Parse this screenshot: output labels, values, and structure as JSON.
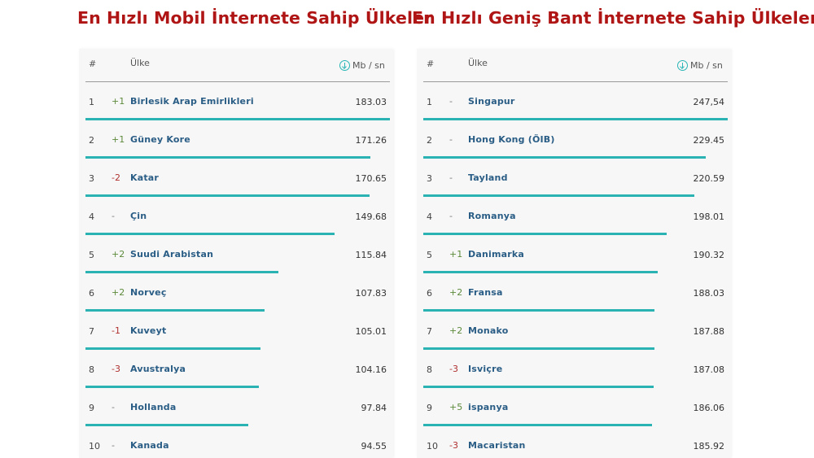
{
  "chart_data": [
    {
      "type": "bar",
      "title": "En Hızlı Mobil İnternete Sahip Ülkeler",
      "header": {
        "rank": "#",
        "country": "Ülke",
        "unit": "Mb / sn"
      },
      "unit_icon": "arrow-down-circle-icon",
      "bar_color": "#2bb3b3",
      "xlim": [
        0,
        183.03
      ],
      "rows": [
        {
          "rank": "1",
          "change": "+1",
          "country": "Birlesik Arap Emirlikleri",
          "value": 183.03,
          "value_label": "183.03"
        },
        {
          "rank": "2",
          "change": "+1",
          "country": "Güney Kore",
          "value": 171.26,
          "value_label": "171.26"
        },
        {
          "rank": "3",
          "change": "-2",
          "country": "Katar",
          "value": 170.65,
          "value_label": "170.65"
        },
        {
          "rank": "4",
          "change": "-",
          "country": "Çin",
          "value": 149.68,
          "value_label": "149.68"
        },
        {
          "rank": "5",
          "change": "+2",
          "country": "Suudi Arabistan",
          "value": 115.84,
          "value_label": "115.84"
        },
        {
          "rank": "6",
          "change": "+2",
          "country": "Norveç",
          "value": 107.83,
          "value_label": "107.83"
        },
        {
          "rank": "7",
          "change": "-1",
          "country": "Kuveyt",
          "value": 105.01,
          "value_label": "105.01"
        },
        {
          "rank": "8",
          "change": "-3",
          "country": "Avustralya",
          "value": 104.16,
          "value_label": "104.16"
        },
        {
          "rank": "9",
          "change": "-",
          "country": "Hollanda",
          "value": 97.84,
          "value_label": "97.84"
        },
        {
          "rank": "10",
          "change": "-",
          "country": "Kanada",
          "value": 94.55,
          "value_label": "94.55"
        }
      ]
    },
    {
      "type": "bar",
      "title": "En Hızlı Geniş Bant İnternete Sahip Ülkeler",
      "header": {
        "rank": "#",
        "country": "Ülke",
        "unit": "Mb / sn"
      },
      "unit_icon": "arrow-down-circle-icon",
      "bar_color": "#2bb3b3",
      "xlim": [
        0,
        247.54
      ],
      "rows": [
        {
          "rank": "1",
          "change": "-",
          "country": "Singapur",
          "value": 247.54,
          "value_label": "247,54"
        },
        {
          "rank": "2",
          "change": "-",
          "country": "Hong Kong (ÖIB)",
          "value": 229.45,
          "value_label": "229.45"
        },
        {
          "rank": "3",
          "change": "-",
          "country": "Tayland",
          "value": 220.59,
          "value_label": "220.59"
        },
        {
          "rank": "4",
          "change": "-",
          "country": "Romanya",
          "value": 198.01,
          "value_label": "198.01"
        },
        {
          "rank": "5",
          "change": "+1",
          "country": "Danimarka",
          "value": 190.32,
          "value_label": "190.32"
        },
        {
          "rank": "6",
          "change": "+2",
          "country": "Fransa",
          "value": 188.03,
          "value_label": "188.03"
        },
        {
          "rank": "7",
          "change": "+2",
          "country": "Monako",
          "value": 187.88,
          "value_label": "187.88"
        },
        {
          "rank": "8",
          "change": "-3",
          "country": "Isviçre",
          "value": 187.08,
          "value_label": "187.08"
        },
        {
          "rank": "9",
          "change": "+5",
          "country": "ispanya",
          "value": 186.06,
          "value_label": "186.06"
        },
        {
          "rank": "10",
          "change": "-3",
          "country": "Macaristan",
          "value": 185.92,
          "value_label": "185.92"
        }
      ]
    }
  ]
}
